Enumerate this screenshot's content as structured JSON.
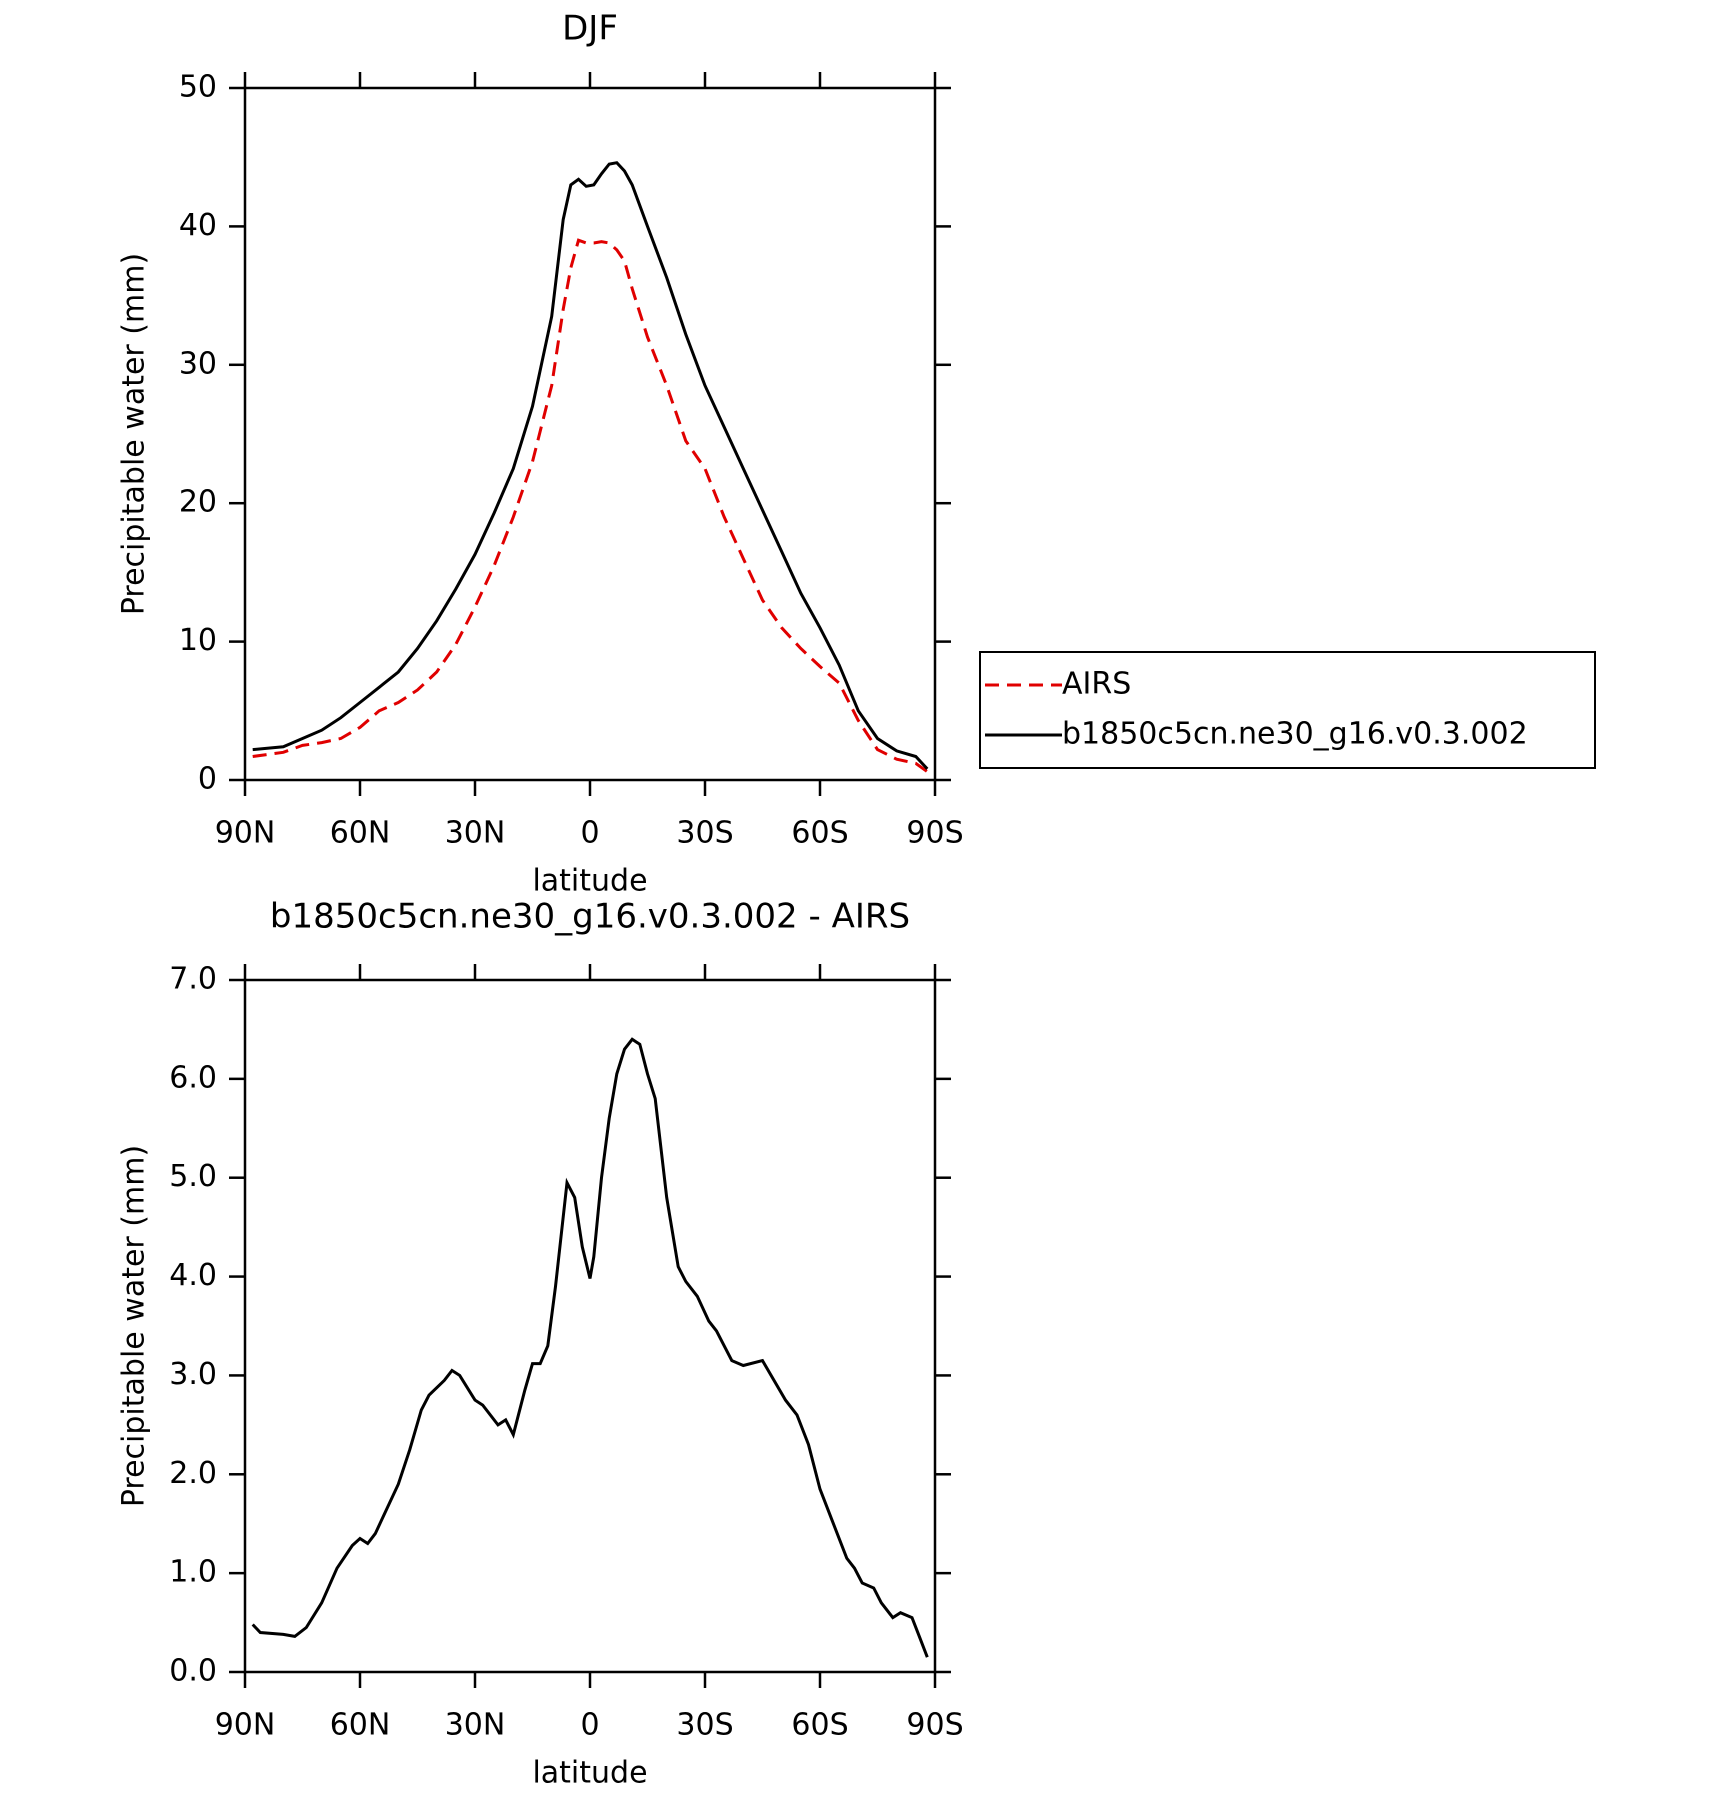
{
  "chart_data": [
    {
      "type": "line",
      "title": "DJF",
      "x_label": "latitude",
      "y_label": "Precipitable water (mm)",
      "x": [
        88,
        80,
        75,
        70,
        65,
        60,
        55,
        50,
        45,
        40,
        35,
        30,
        25,
        20,
        15,
        10,
        7,
        5,
        3,
        1,
        -1,
        -3,
        -5,
        -7,
        -9,
        -11,
        -15,
        -20,
        -25,
        -30,
        -35,
        -40,
        -45,
        -50,
        -55,
        -60,
        -65,
        -70,
        -75,
        -80,
        -85,
        -88
      ],
      "series": [
        {
          "name": "AIRS",
          "color": "#e00000",
          "dashed": true,
          "values": [
            1.7,
            2.0,
            2.5,
            2.7,
            3.0,
            3.8,
            5.0,
            5.6,
            6.5,
            7.8,
            9.8,
            12.5,
            15.5,
            19.0,
            23.0,
            28.5,
            34.0,
            37.0,
            39.0,
            38.8,
            38.8,
            38.9,
            38.8,
            38.3,
            37.5,
            35.5,
            32.0,
            28.5,
            24.5,
            22.5,
            19.0,
            16.0,
            13.0,
            11.0,
            9.5,
            8.2,
            7.0,
            4.3,
            2.2,
            1.5,
            1.2,
            0.6
          ]
        },
        {
          "name": "b1850c5cn.ne30_g16.v0.3.002",
          "color": "#000000",
          "dashed": false,
          "values": [
            2.2,
            2.4,
            3.0,
            3.6,
            4.5,
            5.6,
            6.7,
            7.8,
            9.5,
            11.5,
            13.8,
            16.3,
            19.3,
            22.5,
            27.0,
            33.5,
            40.5,
            43.0,
            43.4,
            42.9,
            43.0,
            43.8,
            44.5,
            44.6,
            44.0,
            43.0,
            40.0,
            36.3,
            32.2,
            28.5,
            25.5,
            22.5,
            19.5,
            16.5,
            13.5,
            11.0,
            8.3,
            5.0,
            3.0,
            2.1,
            1.7,
            0.8
          ]
        }
      ],
      "xlim": [
        90,
        -90
      ],
      "xticks": [
        {
          "value": 90,
          "label": "90N"
        },
        {
          "value": 60,
          "label": "60N"
        },
        {
          "value": 30,
          "label": "30N"
        },
        0,
        {
          "value": -30,
          "label": "30S"
        },
        {
          "value": -60,
          "label": "60S"
        },
        {
          "value": -90,
          "label": "90S"
        }
      ],
      "ylim": [
        0,
        50
      ],
      "yticks": [
        0,
        10,
        20,
        30,
        40,
        50
      ],
      "legend": "right"
    },
    {
      "type": "line",
      "title": "b1850c5cn.ne30_g16.v0.3.002 - AIRS",
      "x_label": "latitude",
      "y_label": "Precipitable water (mm)",
      "x": [
        88,
        86,
        80,
        77,
        74,
        70,
        66,
        62,
        60,
        58,
        56,
        53,
        50,
        47,
        44,
        42,
        38,
        36,
        34,
        30,
        28,
        24,
        22,
        20,
        17,
        15,
        13,
        11,
        9,
        6,
        4,
        2,
        0,
        -1,
        -3,
        -5,
        -7,
        -9,
        -11,
        -13,
        -15,
        -17,
        -20,
        -23,
        -25,
        -28,
        -31,
        -33,
        -37,
        -40,
        -45,
        -48,
        -51,
        -54,
        -57,
        -60,
        -63,
        -67,
        -69,
        -71,
        -74,
        -76,
        -79,
        -81,
        -84,
        -86,
        -88
      ],
      "series": [
        {
          "color": "#000000",
          "dashed": false,
          "values": [
            0.48,
            0.4,
            0.38,
            0.36,
            0.45,
            0.7,
            1.05,
            1.28,
            1.35,
            1.3,
            1.4,
            1.65,
            1.9,
            2.25,
            2.65,
            2.8,
            2.95,
            3.05,
            3.0,
            2.75,
            2.7,
            2.5,
            2.55,
            2.4,
            2.85,
            3.12,
            3.12,
            3.3,
            3.9,
            4.95,
            4.8,
            4.3,
            3.98,
            4.2,
            5.0,
            5.6,
            6.05,
            6.3,
            6.4,
            6.35,
            6.05,
            5.8,
            4.8,
            4.1,
            3.95,
            3.8,
            3.55,
            3.45,
            3.15,
            3.1,
            3.15,
            2.95,
            2.75,
            2.6,
            2.3,
            1.85,
            1.55,
            1.15,
            1.05,
            0.9,
            0.85,
            0.7,
            0.55,
            0.6,
            0.55,
            0.35,
            0.15
          ]
        }
      ],
      "xlim": [
        90,
        -90
      ],
      "xticks": [
        {
          "value": 90,
          "label": "90N"
        },
        {
          "value": 60,
          "label": "60N"
        },
        {
          "value": 30,
          "label": "30N"
        },
        0,
        {
          "value": -30,
          "label": "30S"
        },
        {
          "value": -60,
          "label": "60S"
        },
        {
          "value": -90,
          "label": "90S"
        }
      ],
      "ylim": [
        0,
        7
      ],
      "yticks": [
        {
          "value": 0,
          "label": "0.0"
        },
        {
          "value": 1,
          "label": "1.0"
        },
        {
          "value": 2,
          "label": "2.0"
        },
        {
          "value": 3,
          "label": "3.0"
        },
        {
          "value": 4,
          "label": "4.0"
        },
        {
          "value": 5,
          "label": "5.0"
        },
        {
          "value": 6,
          "label": "6.0"
        },
        {
          "value": 7,
          "label": "7.0"
        }
      ]
    }
  ]
}
